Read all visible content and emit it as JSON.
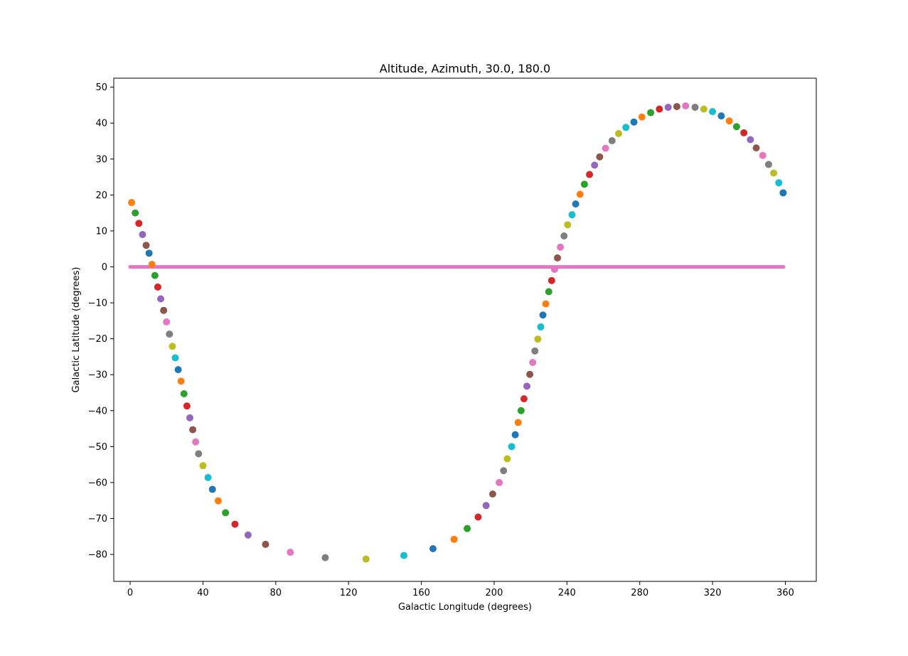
{
  "chart_data": {
    "type": "scatter",
    "title": "Altitude, Azimuth, 30.0, 180.0",
    "xlabel": "Galactic Longitude (degrees)",
    "ylabel": "Galactic Latitude (degrees)",
    "xlim": [
      -9,
      377
    ],
    "ylim": [
      -87.5,
      52.5
    ],
    "xticks": [
      0,
      40,
      80,
      120,
      160,
      200,
      240,
      280,
      320,
      360
    ],
    "xtick_labels": [
      "0",
      "40",
      "80",
      "120",
      "160",
      "200",
      "240",
      "280",
      "320",
      "360"
    ],
    "yticks": [
      50,
      40,
      30,
      20,
      10,
      0,
      -10,
      -20,
      -30,
      -40,
      -50,
      -60,
      -70,
      -80
    ],
    "ytick_labels": [
      "50",
      "40",
      "30",
      "20",
      "10",
      "0",
      "−10",
      "−20",
      "−30",
      "−40",
      "−50",
      "−60",
      "−70",
      "−80"
    ],
    "grid": false,
    "legend": "none",
    "color_cycle": [
      "#1f77b4",
      "#ff7f0e",
      "#2ca02c",
      "#d62728",
      "#9467bd",
      "#8c564b",
      "#e377c2",
      "#7f7f7f",
      "#bcbd22",
      "#17becf"
    ],
    "line": {
      "y": 0,
      "x_range": [
        0,
        359
      ],
      "color": "#e377c2"
    },
    "points": [
      [
        0.8,
        17.9,
        1
      ],
      [
        2.8,
        15.0,
        2
      ],
      [
        4.8,
        12.1,
        3
      ],
      [
        6.8,
        9.0,
        4
      ],
      [
        8.8,
        6.0,
        5
      ],
      [
        10.4,
        3.8,
        0
      ],
      [
        12.0,
        0.7,
        1
      ],
      [
        13.6,
        -2.4,
        2
      ],
      [
        15.2,
        -5.6,
        3
      ],
      [
        16.8,
        -8.9,
        4
      ],
      [
        18.4,
        -12.1,
        5
      ],
      [
        20.0,
        -15.3,
        6
      ],
      [
        21.6,
        -18.7,
        7
      ],
      [
        23.2,
        -22.1,
        8
      ],
      [
        24.8,
        -25.3,
        9
      ],
      [
        26.4,
        -28.6,
        0
      ],
      [
        28.0,
        -31.8,
        1
      ],
      [
        29.6,
        -35.3,
        2
      ],
      [
        31.2,
        -38.7,
        3
      ],
      [
        32.8,
        -42.0,
        4
      ],
      [
        34.4,
        -45.3,
        5
      ],
      [
        36.0,
        -48.7,
        6
      ],
      [
        37.6,
        -52.0,
        7
      ],
      [
        40.0,
        -55.3,
        8
      ],
      [
        42.8,
        -58.6,
        9
      ],
      [
        45.2,
        -61.9,
        0
      ],
      [
        48.4,
        -65.1,
        1
      ],
      [
        52.4,
        -68.4,
        2
      ],
      [
        57.6,
        -71.6,
        3
      ],
      [
        64.8,
        -74.6,
        4
      ],
      [
        74.4,
        -77.2,
        5
      ],
      [
        88.0,
        -79.4,
        6
      ],
      [
        107.2,
        -80.9,
        7
      ],
      [
        129.6,
        -81.3,
        8
      ],
      [
        150.4,
        -80.3,
        9
      ],
      [
        166.4,
        -78.4,
        0
      ],
      [
        178.0,
        -75.8,
        1
      ],
      [
        185.2,
        -72.8,
        2
      ],
      [
        191.2,
        -69.6,
        3
      ],
      [
        195.6,
        -66.4,
        4
      ],
      [
        199.2,
        -63.2,
        5
      ],
      [
        202.8,
        -60.0,
        6
      ],
      [
        205.2,
        -56.7,
        7
      ],
      [
        207.2,
        -53.4,
        8
      ],
      [
        209.6,
        -50.0,
        9
      ],
      [
        211.6,
        -46.7,
        0
      ],
      [
        213.2,
        -43.3,
        1
      ],
      [
        214.8,
        -40.0,
        2
      ],
      [
        216.4,
        -36.7,
        3
      ],
      [
        218.0,
        -33.2,
        4
      ],
      [
        219.6,
        -29.9,
        5
      ],
      [
        221.2,
        -26.6,
        6
      ],
      [
        222.4,
        -23.4,
        7
      ],
      [
        224.0,
        -20.1,
        8
      ],
      [
        225.6,
        -16.7,
        9
      ],
      [
        226.8,
        -13.4,
        0
      ],
      [
        228.4,
        -10.3,
        1
      ],
      [
        230.0,
        -6.9,
        2
      ],
      [
        231.6,
        -3.8,
        3
      ],
      [
        233.2,
        -0.7,
        6
      ],
      [
        234.8,
        2.5,
        5
      ],
      [
        236.4,
        5.5,
        6
      ],
      [
        238.4,
        8.6,
        7
      ],
      [
        240.4,
        11.7,
        8
      ],
      [
        242.8,
        14.5,
        9
      ],
      [
        244.8,
        17.5,
        0
      ],
      [
        247.2,
        20.2,
        1
      ],
      [
        249.6,
        23.0,
        2
      ],
      [
        252.4,
        25.7,
        3
      ],
      [
        255.2,
        28.3,
        4
      ],
      [
        258.0,
        30.6,
        5
      ],
      [
        261.2,
        33.0,
        6
      ],
      [
        264.8,
        35.1,
        7
      ],
      [
        268.4,
        37.1,
        8
      ],
      [
        272.4,
        38.8,
        9
      ],
      [
        276.8,
        40.3,
        0
      ],
      [
        281.2,
        41.7,
        1
      ],
      [
        286.0,
        42.9,
        2
      ],
      [
        290.8,
        43.9,
        3
      ],
      [
        295.6,
        44.4,
        4
      ],
      [
        300.4,
        44.6,
        5
      ],
      [
        305.2,
        44.8,
        6
      ],
      [
        310.4,
        44.4,
        7
      ],
      [
        315.2,
        43.9,
        8
      ],
      [
        320.0,
        43.2,
        9
      ],
      [
        324.8,
        42.0,
        0
      ],
      [
        329.2,
        40.6,
        1
      ],
      [
        333.2,
        39.0,
        2
      ],
      [
        337.2,
        37.3,
        3
      ],
      [
        340.8,
        35.4,
        4
      ],
      [
        344.0,
        33.1,
        5
      ],
      [
        347.6,
        31.0,
        6
      ],
      [
        350.8,
        28.5,
        7
      ],
      [
        353.6,
        26.1,
        8
      ],
      [
        356.4,
        23.4,
        9
      ],
      [
        358.8,
        20.6,
        0
      ]
    ]
  }
}
